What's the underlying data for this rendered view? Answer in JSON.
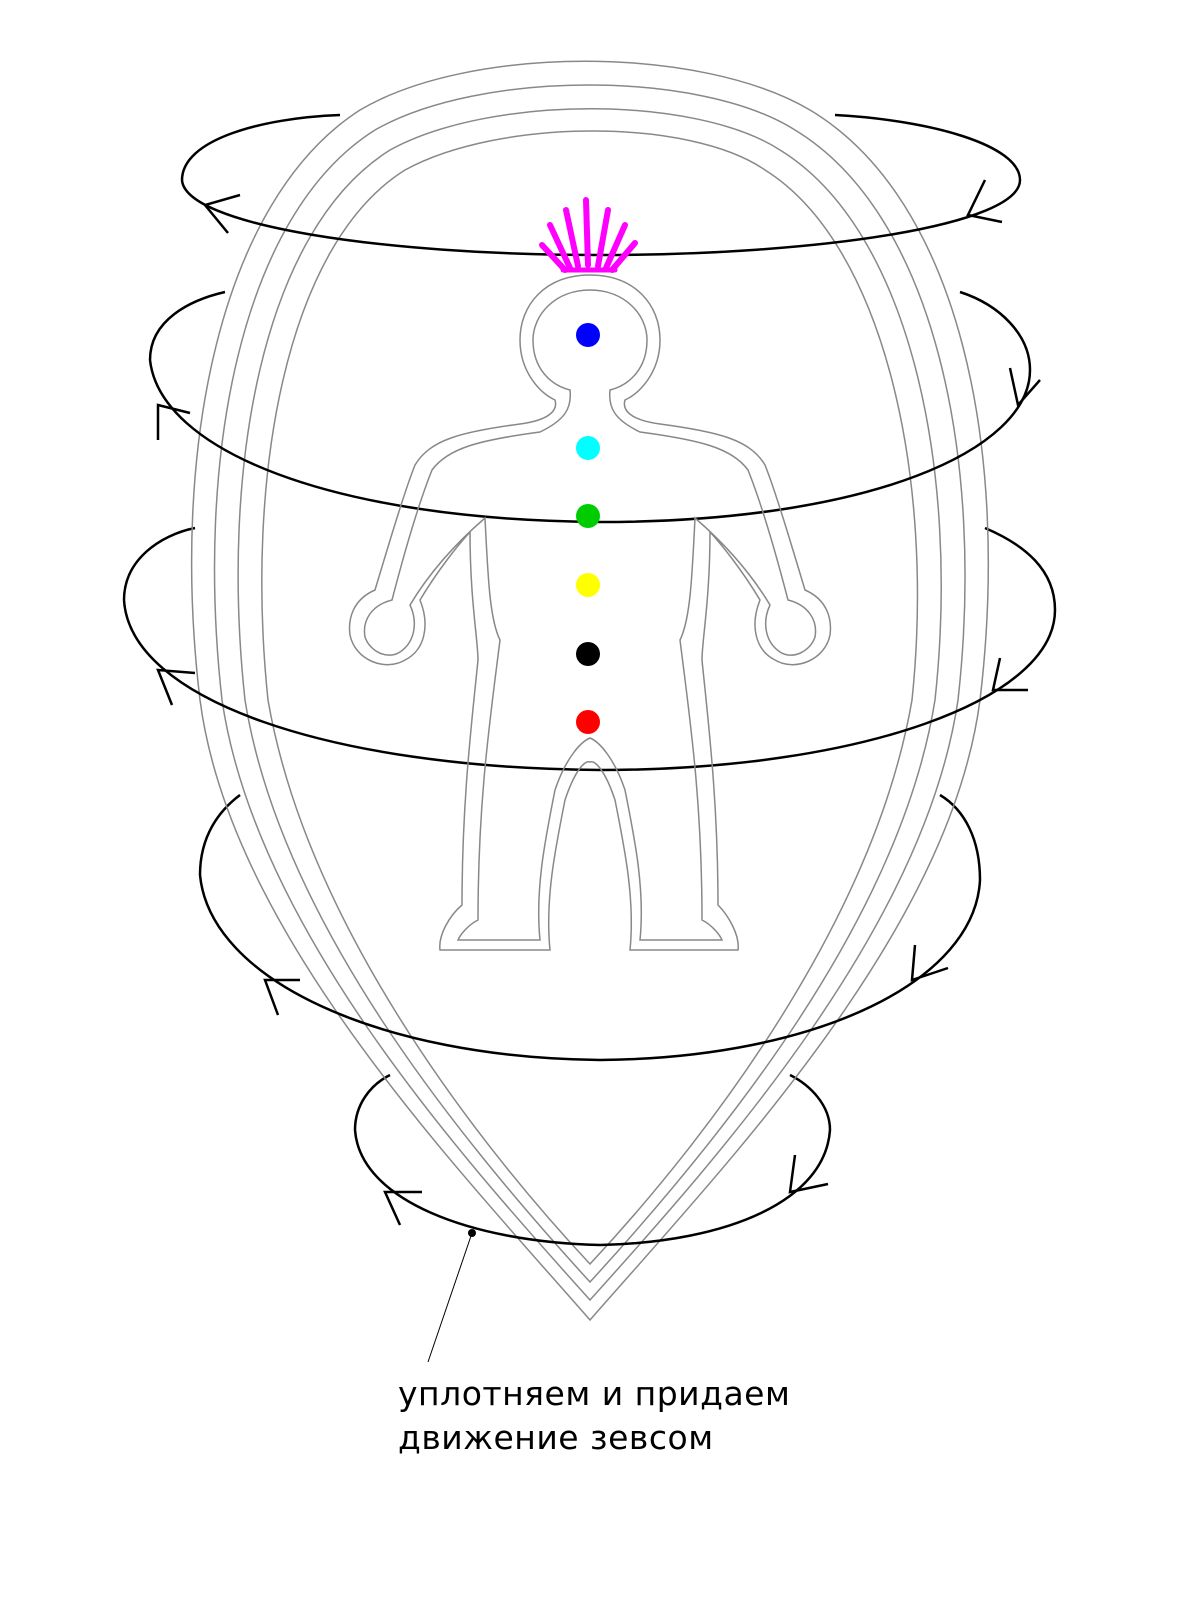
{
  "caption": {
    "line1": "уплотняем и придаем",
    "line2": "движение зевсом"
  },
  "colors": {
    "background": "#ffffff",
    "vortex_stroke": "#000000",
    "aura_stroke": "#888888",
    "body_outline": "#888888",
    "crown_rays": "#ff00ff"
  },
  "chakras": [
    {
      "name": "crown-blue",
      "color": "#0000ff"
    },
    {
      "name": "throat-cyan",
      "color": "#00ffff"
    },
    {
      "name": "heart-green",
      "color": "#00cc00"
    },
    {
      "name": "solar-yellow",
      "color": "#ffff00"
    },
    {
      "name": "sacral-black",
      "color": "#000000"
    },
    {
      "name": "root-red",
      "color": "#ff0000"
    }
  ],
  "icons": {
    "rotation_arrow": "arrow-head-icon",
    "pointer_dot": "pointer-dot-icon"
  }
}
